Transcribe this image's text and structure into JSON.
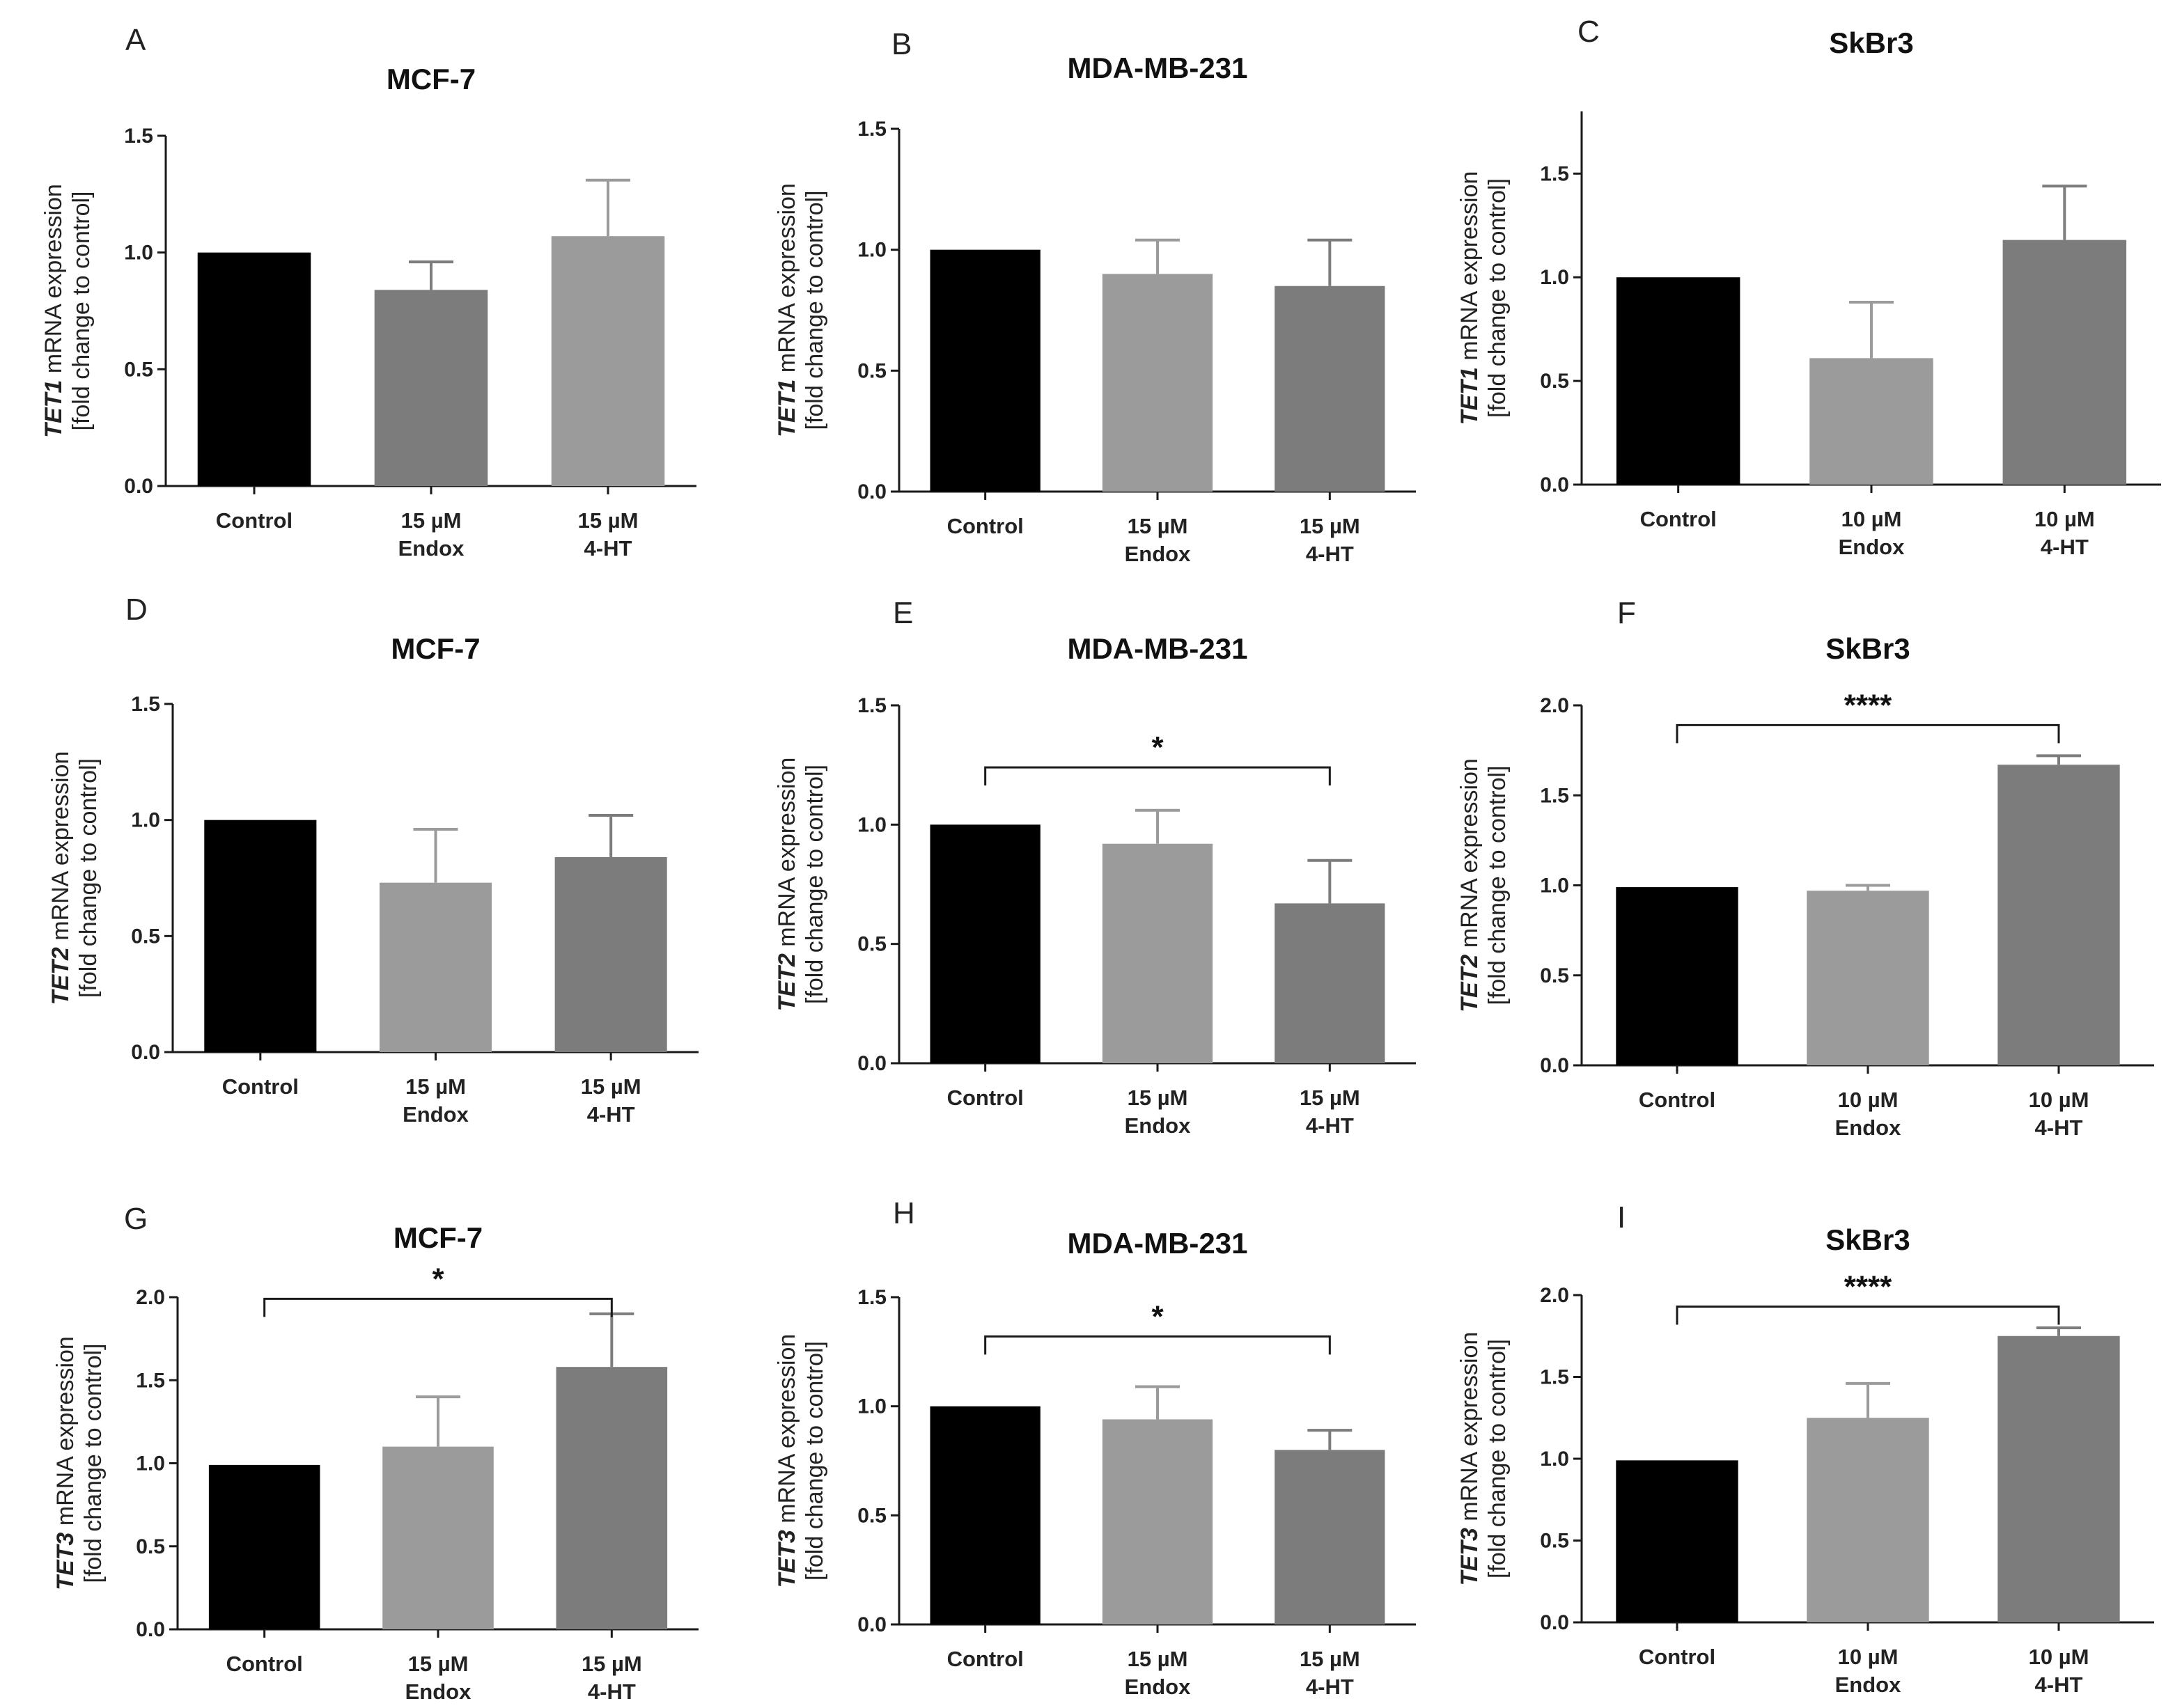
{
  "colors": {
    "control": "#000000",
    "light_grey": "#9b9b9b",
    "dark_grey": "#7c7c7c",
    "axis": "#1a1a1a"
  },
  "chart_data": [
    {
      "type": "bar",
      "panel": "A",
      "title": "MCF-7",
      "ylabel_gene": "TET1",
      "ylabel_line1": " mRNA expression",
      "ylabel_line2": "[fold change to control]",
      "ylim": [
        0,
        1.5
      ],
      "ticks": [
        0.0,
        0.5,
        1.0,
        1.5
      ],
      "tick_labels": [
        "0.0",
        "0.5",
        "1.0",
        "1.5"
      ],
      "categories": [
        [
          "Control"
        ],
        [
          "15 µM",
          "Endox"
        ],
        [
          "15 µM",
          "4-HT"
        ]
      ],
      "values": [
        1.0,
        0.84,
        1.07
      ],
      "errors": [
        0,
        0.12,
        0.24
      ],
      "bar_colors": [
        "control",
        "dark_grey",
        "light_grey"
      ],
      "significance": null
    },
    {
      "type": "bar",
      "panel": "B",
      "title": "MDA-MB-231",
      "ylabel_gene": "TET1",
      "ylabel_line1": " mRNA expression",
      "ylabel_line2": "[fold change to control]",
      "ylim": [
        0,
        1.5
      ],
      "ticks": [
        0.0,
        0.5,
        1.0,
        1.5
      ],
      "tick_labels": [
        "0.0",
        "0.5",
        "1.0",
        "1.5"
      ],
      "categories": [
        [
          "Control"
        ],
        [
          "15 µM",
          "Endox"
        ],
        [
          "15 µM",
          "4-HT"
        ]
      ],
      "values": [
        1.0,
        0.9,
        0.85
      ],
      "errors": [
        0,
        0.14,
        0.19
      ],
      "bar_colors": [
        "control",
        "light_grey",
        "dark_grey"
      ],
      "significance": null
    },
    {
      "type": "bar",
      "panel": "C",
      "title": "SkBr3",
      "ylabel_gene": "TET1",
      "ylabel_line1": " mRNA expression",
      "ylabel_line2": "[fold change to control]",
      "ylim": [
        0,
        1.8
      ],
      "ticks": [
        0.0,
        0.5,
        1.0,
        1.5
      ],
      "tick_labels": [
        "0.0",
        "0.5",
        "1.0",
        "1.5"
      ],
      "categories": [
        [
          "Control"
        ],
        [
          "10 µM",
          "Endox"
        ],
        [
          "10 µM",
          "4-HT"
        ]
      ],
      "values": [
        1.0,
        0.61,
        1.18
      ],
      "errors": [
        0,
        0.27,
        0.26
      ],
      "bar_colors": [
        "control",
        "light_grey",
        "dark_grey"
      ],
      "significance": null
    },
    {
      "type": "bar",
      "panel": "D",
      "title": "MCF-7",
      "ylabel_gene": "TET2",
      "ylabel_line1": " mRNA expression",
      "ylabel_line2": "[fold change to control]",
      "ylim": [
        0,
        1.5
      ],
      "ticks": [
        0.0,
        0.5,
        1.0,
        1.5
      ],
      "tick_labels": [
        "0.0",
        "0.5",
        "1.0",
        "1.5"
      ],
      "categories": [
        [
          "Control"
        ],
        [
          "15 µM",
          "Endox"
        ],
        [
          "15 µM",
          "4-HT"
        ]
      ],
      "values": [
        1.0,
        0.73,
        0.84
      ],
      "errors": [
        0,
        0.23,
        0.18
      ],
      "bar_colors": [
        "control",
        "light_grey",
        "dark_grey"
      ],
      "significance": null
    },
    {
      "type": "bar",
      "panel": "E",
      "title": "MDA-MB-231",
      "ylabel_gene": "TET2",
      "ylabel_line1": " mRNA expression",
      "ylabel_line2": "[fold change to control]",
      "ylim": [
        0,
        1.5
      ],
      "ticks": [
        0.0,
        0.5,
        1.0,
        1.5
      ],
      "tick_labels": [
        "0.0",
        "0.5",
        "1.0",
        "1.5"
      ],
      "categories": [
        [
          "Control"
        ],
        [
          "15 µM",
          "Endox"
        ],
        [
          "15 µM",
          "4-HT"
        ]
      ],
      "values": [
        1.0,
        0.92,
        0.67
      ],
      "errors": [
        0,
        0.14,
        0.18
      ],
      "bar_colors": [
        "control",
        "light_grey",
        "dark_grey"
      ],
      "significance": {
        "from": 0,
        "to": 2,
        "y": 1.24,
        "label": "*"
      }
    },
    {
      "type": "bar",
      "panel": "F",
      "title": "SkBr3",
      "ylabel_gene": "TET2",
      "ylabel_line1": " mRNA expression",
      "ylabel_line2": "[fold change to control]",
      "ylim": [
        0,
        2.0
      ],
      "ticks": [
        0.0,
        0.5,
        1.0,
        1.5,
        2.0
      ],
      "tick_labels": [
        "0.0",
        "0.5",
        "1.0",
        "1.5",
        "2.0"
      ],
      "categories": [
        [
          "Control"
        ],
        [
          "10 µM",
          "Endox"
        ],
        [
          "10 µM",
          "4-HT"
        ]
      ],
      "values": [
        0.99,
        0.97,
        1.67
      ],
      "errors": [
        0,
        0.03,
        0.05
      ],
      "bar_colors": [
        "control",
        "light_grey",
        "dark_grey"
      ],
      "significance": {
        "from": 0,
        "to": 2,
        "y": 1.89,
        "label": "****"
      }
    },
    {
      "type": "bar",
      "panel": "G",
      "title": "MCF-7",
      "ylabel_gene": "TET3",
      "ylabel_line1": " mRNA expression",
      "ylabel_line2": "[fold change to control]",
      "ylim": [
        0,
        2.0
      ],
      "ticks": [
        0.0,
        0.5,
        1.0,
        1.5,
        2.0
      ],
      "tick_labels": [
        "0.0",
        "0.5",
        "1.0",
        "1.5",
        "2.0"
      ],
      "categories": [
        [
          "Control"
        ],
        [
          "15 µM",
          "Endox"
        ],
        [
          "15 µM",
          "4-HT"
        ]
      ],
      "values": [
        0.99,
        1.1,
        1.58
      ],
      "errors": [
        0,
        0.3,
        0.32
      ],
      "bar_colors": [
        "control",
        "light_grey",
        "dark_grey"
      ],
      "significance": {
        "from": 0,
        "to": 2,
        "y": 1.99,
        "label": "*"
      }
    },
    {
      "type": "bar",
      "panel": "H",
      "title": "MDA-MB-231",
      "ylabel_gene": "TET3",
      "ylabel_line1": " mRNA expression",
      "ylabel_line2": "[fold change to control]",
      "ylim": [
        0,
        1.5
      ],
      "ticks": [
        0.0,
        0.5,
        1.0,
        1.5
      ],
      "tick_labels": [
        "0.0",
        "0.5",
        "1.0",
        "1.5"
      ],
      "categories": [
        [
          "Control"
        ],
        [
          "15 µM",
          "Endox"
        ],
        [
          "15 µM",
          "4-HT"
        ]
      ],
      "values": [
        1.0,
        0.94,
        0.8
      ],
      "errors": [
        0,
        0.15,
        0.09
      ],
      "bar_colors": [
        "control",
        "light_grey",
        "dark_grey"
      ],
      "significance": {
        "from": 0,
        "to": 2,
        "y": 1.32,
        "label": "*"
      }
    },
    {
      "type": "bar",
      "panel": "I",
      "title": "SkBr3",
      "ylabel_gene": "TET3",
      "ylabel_line1": " mRNA expression",
      "ylabel_line2": "[fold change to control]",
      "ylim": [
        0,
        2.0
      ],
      "ticks": [
        0.0,
        0.5,
        1.0,
        1.5,
        2.0
      ],
      "tick_labels": [
        "0.0",
        "0.5",
        "1.0",
        "1.5",
        "2.0"
      ],
      "categories": [
        [
          "Control"
        ],
        [
          "10 µM",
          "Endox"
        ],
        [
          "10 µM",
          "4-HT"
        ]
      ],
      "values": [
        0.99,
        1.25,
        1.75
      ],
      "errors": [
        0,
        0.21,
        0.05
      ],
      "bar_colors": [
        "control",
        "light_grey",
        "dark_grey"
      ],
      "significance": {
        "from": 0,
        "to": 2,
        "y": 1.93,
        "label": "****"
      }
    }
  ]
}
